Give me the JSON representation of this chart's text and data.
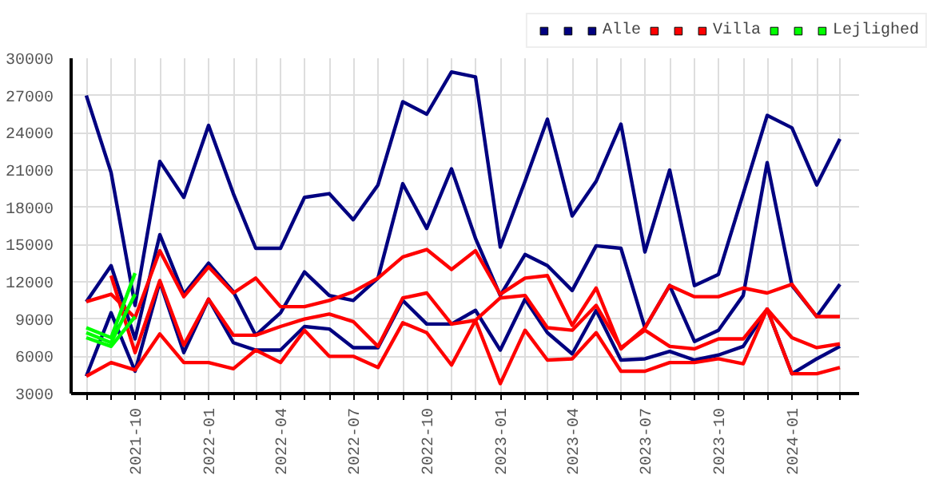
{
  "chart_data": {
    "type": "line",
    "x": [
      "2021-08",
      "2021-09",
      "2021-10",
      "2021-11",
      "2021-12",
      "2022-01",
      "2022-02",
      "2022-03",
      "2022-04",
      "2022-05",
      "2022-06",
      "2022-07",
      "2022-08",
      "2022-09",
      "2022-10",
      "2022-11",
      "2022-12",
      "2023-01",
      "2023-02",
      "2023-03",
      "2023-04",
      "2023-05",
      "2023-06",
      "2023-07",
      "2023-08",
      "2023-09",
      "2023-10",
      "2023-11",
      "2023-12",
      "2024-01",
      "2024-02",
      "2024-03"
    ],
    "series": [
      {
        "name": null,
        "color": "#000080",
        "values": [
          27000,
          20800,
          10100,
          21700,
          18800,
          24600,
          19100,
          14700,
          14700,
          18800,
          19100,
          17000,
          19800,
          26500,
          25500,
          28900,
          28500,
          14800,
          20100,
          25100,
          17300,
          20100,
          24700,
          14400,
          21000,
          11700,
          12600,
          19100,
          25400,
          24400,
          19800,
          23500
        ]
      },
      {
        "name": null,
        "color": "#000080",
        "values": [
          10400,
          13300,
          7400,
          15800,
          11000,
          13500,
          11200,
          7700,
          9500,
          12800,
          10900,
          10500,
          12300,
          19900,
          16300,
          21100,
          15500,
          10900,
          14200,
          13300,
          11300,
          14900,
          14700,
          8300,
          11700,
          7200,
          8100,
          10900,
          21600,
          11700,
          9200,
          11800
        ]
      },
      {
        "name": "Alle",
        "color": "#000080",
        "values": [
          4400,
          9500,
          4800,
          12000,
          6300,
          10600,
          7100,
          6500,
          6500,
          8400,
          8200,
          6700,
          6700,
          10500,
          8600,
          8600,
          9700,
          6500,
          10600,
          7900,
          6200,
          9700,
          5700,
          5800,
          6400,
          5700,
          6100,
          6800,
          9800,
          4600,
          5800,
          6800
        ]
      },
      {
        "name": null,
        "color": "#ff0000",
        "values": [
          10400,
          11000,
          9100,
          14500,
          10800,
          13200,
          11100,
          12300,
          10000,
          10000,
          10500,
          11200,
          12300,
          14000,
          14600,
          13000,
          14500,
          11000,
          12300,
          12500,
          8500,
          11500,
          6600,
          8300,
          11700,
          10800,
          10800,
          11500,
          11100,
          11800,
          9200,
          9200
        ]
      },
      {
        "name": null,
        "color": "#ff0000",
        "values": [
          null,
          12500,
          6300,
          12100,
          6900,
          10600,
          7700,
          7700,
          8400,
          9000,
          9400,
          8800,
          6800,
          10700,
          11100,
          8600,
          8900,
          10700,
          10900,
          8300,
          8100,
          10100,
          6700,
          8100,
          6800,
          6600,
          7400,
          7400,
          9800,
          7500,
          6700,
          7000
        ]
      },
      {
        "name": "Villa",
        "color": "#ff0000",
        "values": [
          4400,
          5500,
          4900,
          7800,
          5500,
          5500,
          5000,
          6500,
          5500,
          8100,
          6000,
          6000,
          5100,
          8700,
          7900,
          5300,
          8900,
          3800,
          8100,
          5700,
          5800,
          7900,
          4800,
          4800,
          5500,
          5500,
          5800,
          5400,
          9800,
          4600,
          4600,
          5100
        ]
      },
      {
        "name": null,
        "color": "#00ff00",
        "x": [
          "2021-08",
          "2021-09",
          "2021-10"
        ],
        "values": [
          8300,
          7500,
          12700
        ]
      },
      {
        "name": null,
        "color": "#00ff00",
        "x": [
          "2021-08",
          "2021-09",
          "2021-10"
        ],
        "values": [
          7900,
          7100,
          11000
        ]
      },
      {
        "name": "Lejlighed",
        "color": "#00ff00",
        "x": [
          "2021-08",
          "2021-09",
          "2021-10"
        ],
        "values": [
          7500,
          6800,
          9200
        ]
      }
    ],
    "xlim": [
      "2021-07-13",
      "2024-03-25"
    ],
    "xticks": [
      {
        "value": "2021-08",
        "label": null
      },
      {
        "value": "2021-09",
        "label": null
      },
      {
        "value": "2021-10",
        "label": "2021-10"
      },
      {
        "value": "2021-11",
        "label": null
      },
      {
        "value": "2021-12",
        "label": null
      },
      {
        "value": "2022-01",
        "label": "2022-01"
      },
      {
        "value": "2022-02",
        "label": null
      },
      {
        "value": "2022-03",
        "label": null
      },
      {
        "value": "2022-04",
        "label": "2022-04"
      },
      {
        "value": "2022-05",
        "label": null
      },
      {
        "value": "2022-06",
        "label": null
      },
      {
        "value": "2022-07",
        "label": "2022-07"
      },
      {
        "value": "2022-08",
        "label": null
      },
      {
        "value": "2022-09",
        "label": null
      },
      {
        "value": "2022-10",
        "label": "2022-10"
      },
      {
        "value": "2022-11",
        "label": null
      },
      {
        "value": "2022-12",
        "label": null
      },
      {
        "value": "2023-01",
        "label": "2023-01"
      },
      {
        "value": "2023-02",
        "label": null
      },
      {
        "value": "2023-03",
        "label": null
      },
      {
        "value": "2023-04",
        "label": "2023-04"
      },
      {
        "value": "2023-05",
        "label": null
      },
      {
        "value": "2023-06",
        "label": null
      },
      {
        "value": "2023-07",
        "label": "2023-07"
      },
      {
        "value": "2023-08",
        "label": null
      },
      {
        "value": "2023-09",
        "label": null
      },
      {
        "value": "2023-10",
        "label": "2023-10"
      },
      {
        "value": "2023-11",
        "label": null
      },
      {
        "value": "2023-12",
        "label": null
      },
      {
        "value": "2024-01",
        "label": "2024-01"
      },
      {
        "value": "2024-02",
        "label": null
      },
      {
        "value": "2024-03",
        "label": null
      }
    ],
    "ylim": [
      3000,
      30000
    ],
    "yticks": [
      3000,
      6000,
      9000,
      12000,
      15000,
      18000,
      21000,
      24000,
      27000,
      30000
    ],
    "grid": true,
    "legend": "top right"
  }
}
